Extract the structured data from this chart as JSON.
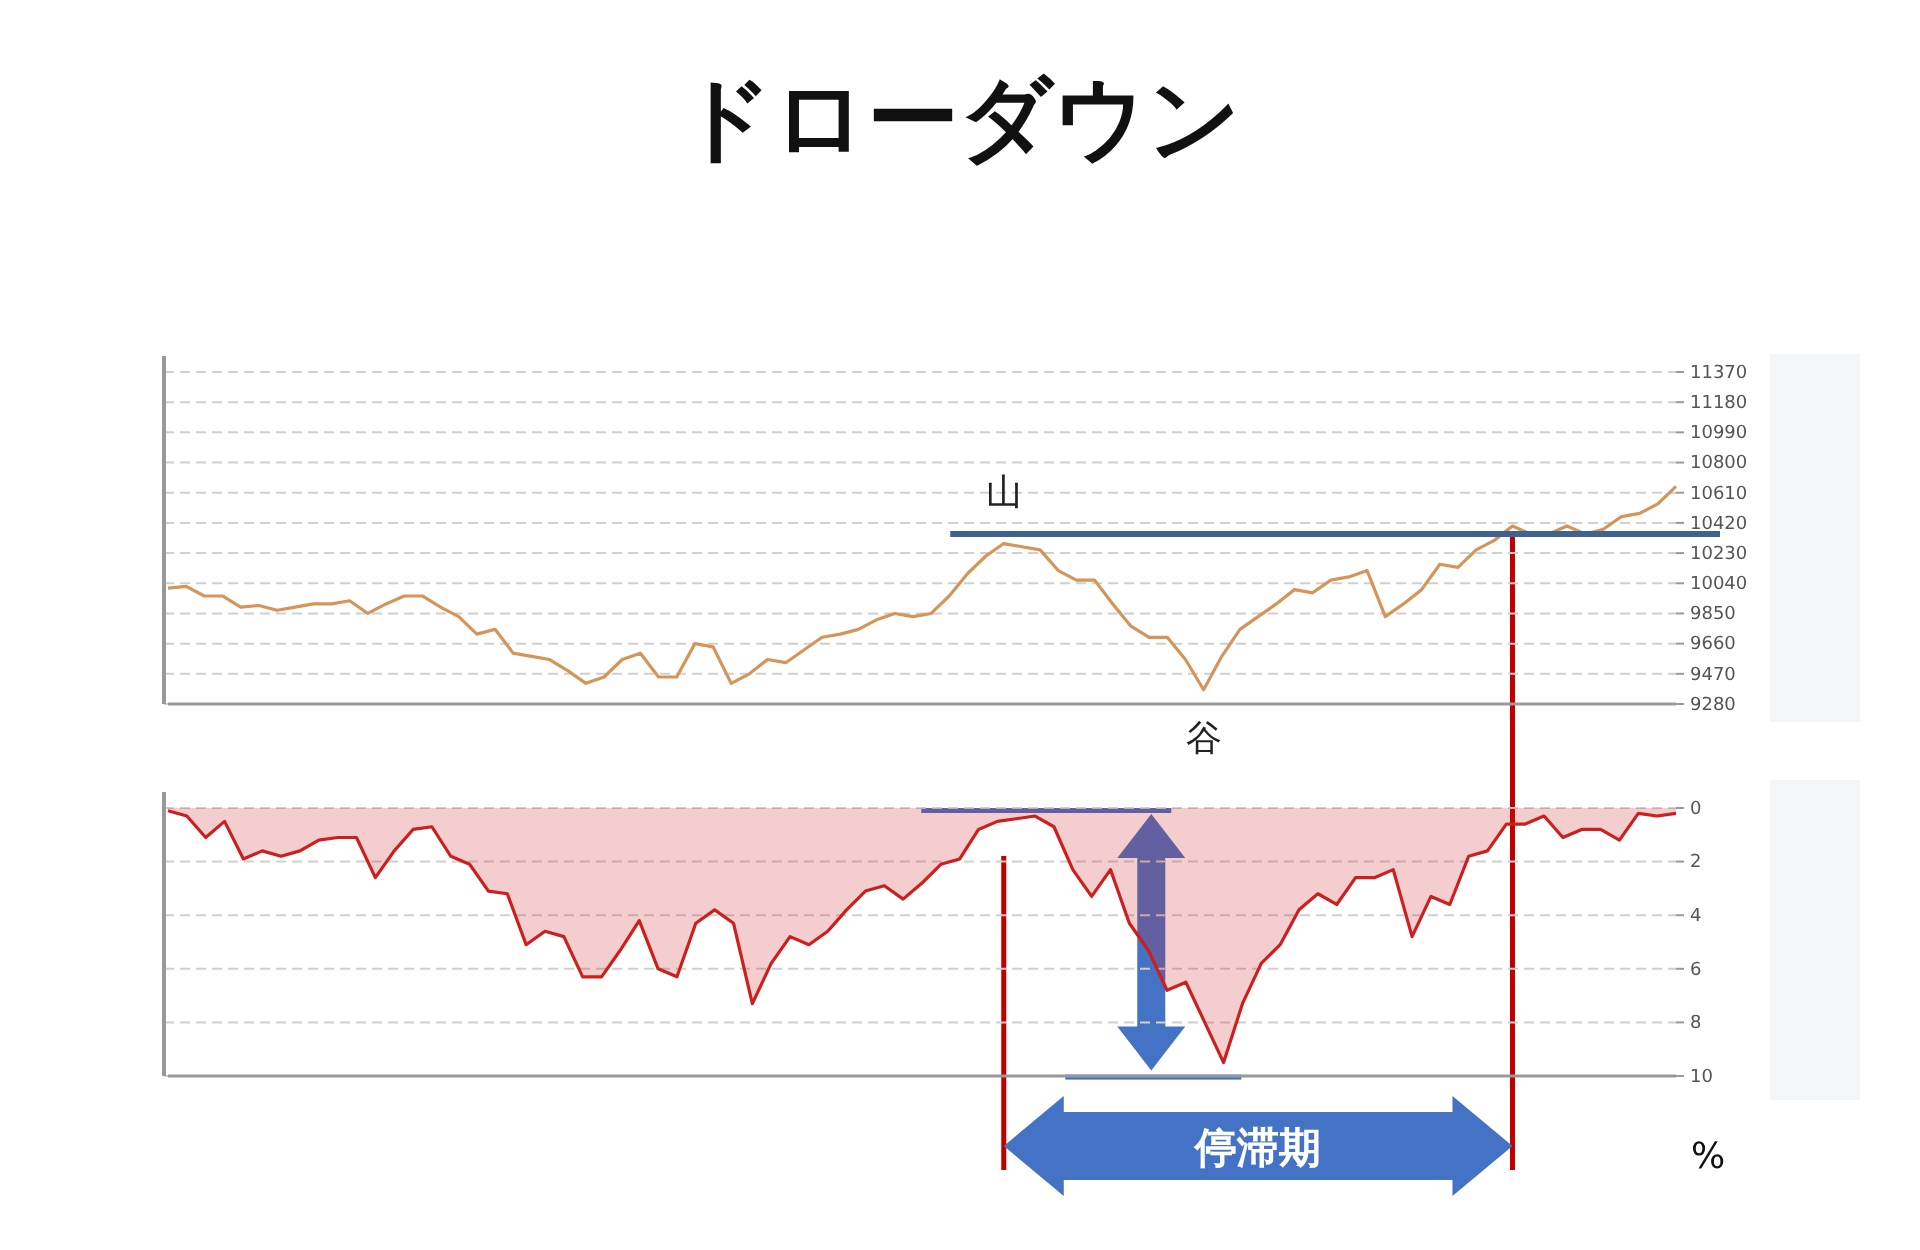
{
  "chart_data": [
    {
      "type": "line",
      "title": "ドローダウン",
      "color": "#d4955a",
      "categories": [
        null,
        null,
        null,
        null,
        null,
        null,
        null,
        null,
        null,
        null,
        null,
        null,
        null,
        null,
        null,
        null,
        null,
        null,
        null,
        null,
        null,
        null,
        null,
        null,
        null,
        null,
        null,
        null,
        null,
        null,
        null,
        null,
        null,
        null,
        null,
        null,
        null,
        null,
        null,
        null,
        null,
        null,
        null,
        null,
        null,
        null,
        null,
        null,
        null,
        null,
        null,
        null,
        null,
        null,
        null,
        null,
        null,
        null,
        null,
        null,
        null,
        null,
        null,
        null,
        null,
        null,
        null,
        null,
        null,
        null,
        null,
        null,
        null,
        null,
        null,
        null,
        null,
        null,
        null,
        null,
        null,
        null,
        null,
        null
      ],
      "values": [
        10010,
        10020,
        9960,
        9960,
        9890,
        9900,
        9870,
        9890,
        9910,
        9910,
        9930,
        9850,
        9910,
        9960,
        9960,
        9890,
        9830,
        9720,
        9750,
        9600,
        9580,
        9560,
        9490,
        9410,
        9450,
        9560,
        9600,
        9450,
        9450,
        9660,
        9640,
        9410,
        9470,
        9560,
        9540,
        9620,
        9700,
        9720,
        9750,
        9810,
        9850,
        9830,
        9850,
        9960,
        10100,
        10210,
        10290,
        10270,
        10250,
        10120,
        10060,
        10060,
        9910,
        9770,
        9700,
        9700,
        9560,
        9370,
        9580,
        9750,
        9830,
        9910,
        10000,
        9980,
        10060,
        10080,
        10120,
        9830,
        9910,
        10000,
        10160,
        10140,
        10250,
        10310,
        10400,
        10350,
        10350,
        10400,
        10350,
        10380,
        10460,
        10480,
        10540,
        10650
      ],
      "ylim": [
        9280,
        11370
      ],
      "yticks": [
        9280,
        9470,
        9660,
        9850,
        10040,
        10230,
        10420,
        10610,
        10800,
        10990,
        11180,
        11370
      ],
      "grid": "y",
      "tick_labels": "y",
      "ref_lines": [
        {
          "axis": "y",
          "value": 10350,
          "color": "#3d6491"
        }
      ],
      "annotations": [
        {
          "text": "山",
          "y": 10290
        },
        {
          "text": "谷",
          "y": 9370
        }
      ]
    },
    {
      "type": "area",
      "ylabel": "%",
      "color": "#cc1f1f",
      "categories": [
        null,
        null,
        null,
        null,
        null,
        null,
        null,
        null,
        null,
        null,
        null,
        null,
        null,
        null,
        null,
        null,
        null,
        null,
        null,
        null,
        null,
        null,
        null,
        null,
        null,
        null,
        null,
        null,
        null,
        null,
        null,
        null,
        null,
        null,
        null,
        null,
        null,
        null,
        null,
        null,
        null,
        null,
        null,
        null,
        null,
        null,
        null,
        null,
        null,
        null,
        null,
        null,
        null,
        null,
        null,
        null,
        null,
        null,
        null,
        null,
        null,
        null,
        null,
        null,
        null,
        null,
        null,
        null,
        null,
        null,
        null,
        null,
        null,
        null,
        null,
        null,
        null,
        null,
        null,
        null,
        null
      ],
      "values": [
        0.1,
        0.3,
        1.1,
        0.5,
        1.9,
        1.6,
        1.8,
        1.6,
        1.2,
        1.1,
        1.1,
        2.6,
        1.6,
        0.8,
        0.7,
        1.8,
        2.1,
        3.1,
        3.2,
        5.1,
        4.6,
        4.8,
        6.3,
        6.3,
        5.3,
        4.2,
        6.0,
        6.3,
        4.3,
        3.8,
        4.3,
        7.3,
        5.8,
        4.8,
        5.1,
        4.6,
        3.8,
        3.1,
        2.9,
        3.4,
        2.8,
        2.1,
        1.9,
        0.8,
        0.5,
        0.4,
        0.3,
        0.7,
        2.3,
        3.3,
        2.3,
        4.3,
        5.3,
        6.8,
        6.5,
        8.0,
        9.5,
        7.3,
        5.8,
        5.1,
        3.8,
        3.2,
        3.6,
        2.6,
        2.6,
        2.3,
        4.8,
        3.3,
        3.6,
        1.8,
        1.6,
        0.6,
        0.6,
        0.3,
        1.1,
        0.8,
        0.8,
        1.2,
        0.2,
        0.3,
        0.2
      ],
      "ylim": [
        10,
        0
      ],
      "yticks": [
        0,
        2,
        4,
        6,
        8,
        10
      ],
      "grid": "y",
      "tick_labels": "y",
      "annotations": [
        "停滞期"
      ]
    }
  ]
}
